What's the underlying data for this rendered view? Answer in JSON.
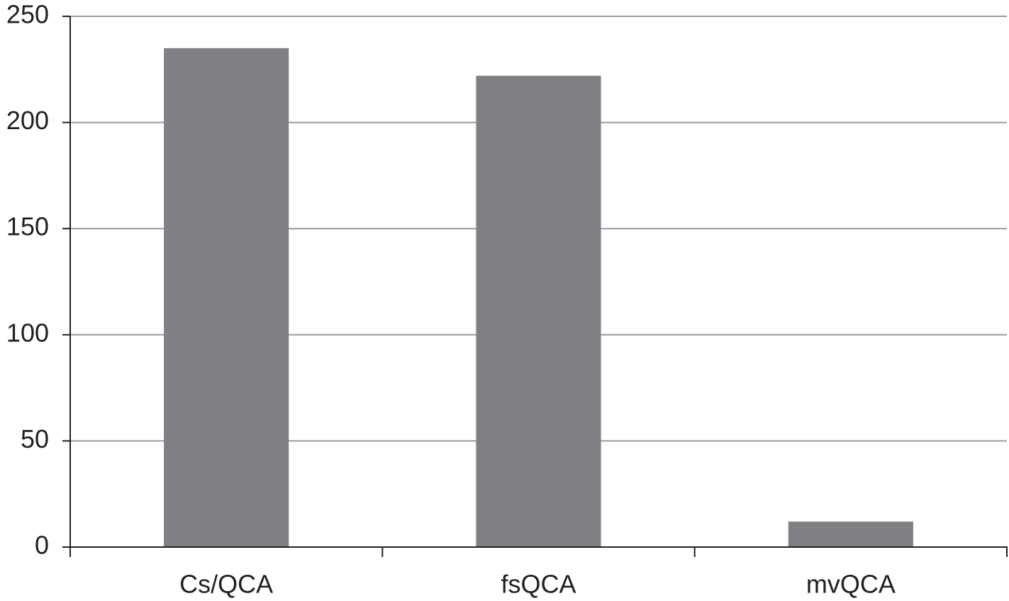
{
  "chart_data": {
    "type": "bar",
    "categories": [
      "Cs/QCA",
      "fsQCA",
      "mvQCA"
    ],
    "values": [
      235,
      222,
      12
    ],
    "color": "#7f8084",
    "ylim": [
      0,
      250
    ],
    "yticks": [
      0,
      50,
      100,
      150,
      200,
      250
    ],
    "grid": true
  }
}
